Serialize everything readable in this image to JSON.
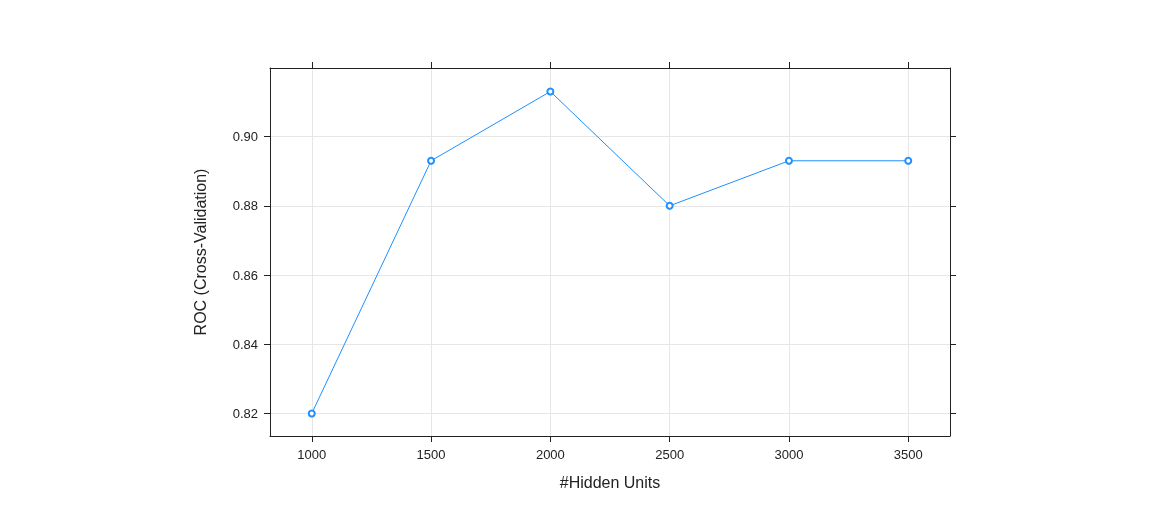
{
  "chart_data": {
    "type": "line",
    "xlabel": "#Hidden Units",
    "ylabel": "ROC (Cross-Validation)",
    "x": [
      1000,
      1500,
      2000,
      2500,
      3000,
      3500
    ],
    "series": [
      {
        "color": "#1e90ff",
        "values": [
          0.82,
          0.893,
          0.913,
          0.88,
          0.893,
          0.893
        ]
      }
    ],
    "xlim": [
      825,
      3675
    ],
    "xticks": [
      1000,
      1500,
      2000,
      2500,
      3000,
      3500
    ],
    "ylim": [
      0.8135,
      0.9198
    ],
    "yticks": [
      0.82,
      0.84,
      0.86,
      0.88,
      {
        "value": 0.9,
        "label": "0.90"
      }
    ],
    "grid": true,
    "marker": "circle",
    "line_style": "solid"
  }
}
